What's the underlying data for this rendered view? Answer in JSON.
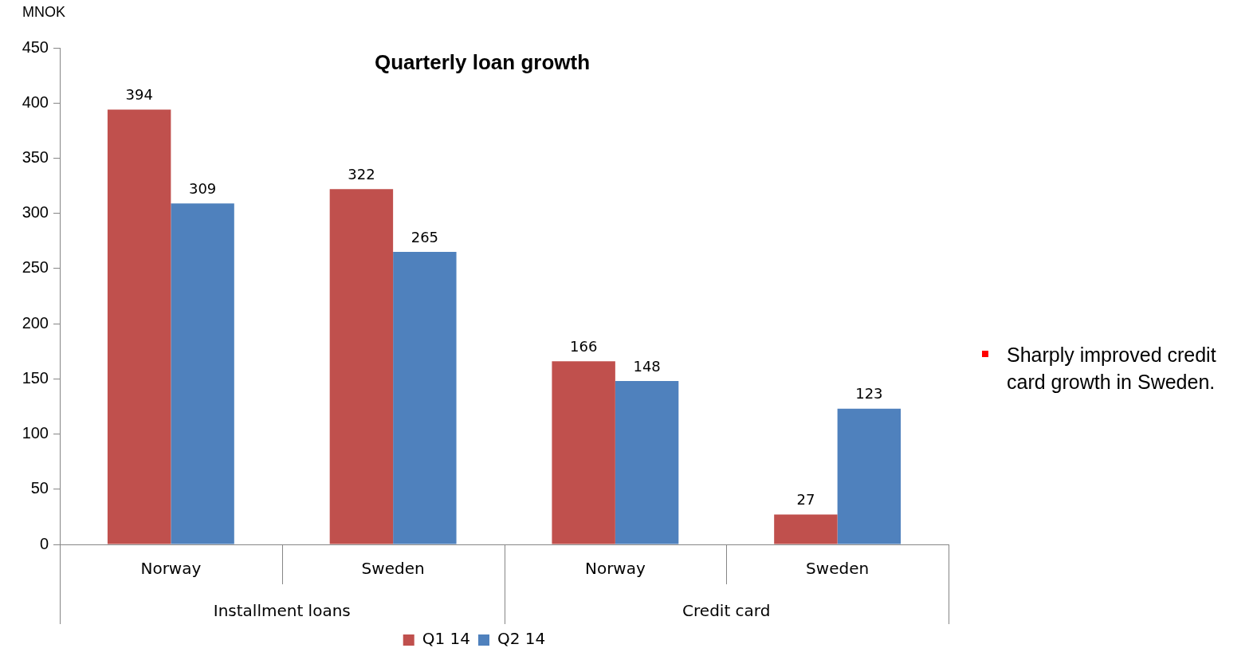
{
  "chart_data": {
    "type": "bar",
    "title": "Quarterly loan growth",
    "ylabel": "MNOK",
    "categories": [
      "Norway",
      "Sweden",
      "Norway",
      "Sweden"
    ],
    "series": [
      {
        "name": "Q1 14",
        "color": "#c0504d",
        "values": [
          394,
          322,
          166,
          27
        ]
      },
      {
        "name": "Q2 14",
        "color": "#4f81bd",
        "values": [
          309,
          265,
          148,
          123
        ]
      }
    ],
    "ylim": [
      0,
      450
    ],
    "yticks": [
      0,
      50,
      100,
      150,
      200,
      250,
      300,
      350,
      400,
      450
    ],
    "data_labels": true,
    "grid": false,
    "legend": "bottom",
    "annotations": [
      "Installment loans",
      "Credit card",
      "Sharply improved credit card growth in Sweden."
    ]
  }
}
